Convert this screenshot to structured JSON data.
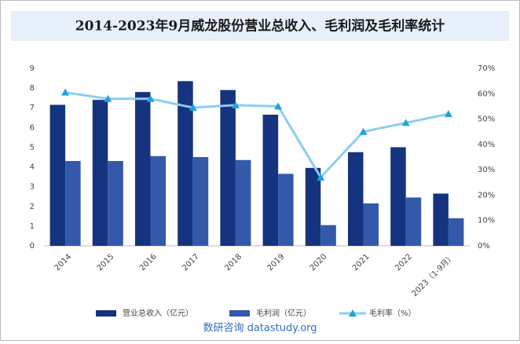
{
  "chart_data": {
    "type": "bar",
    "title": "2014-2023年9月威龙股份营业总收入、毛利润及毛利率统计",
    "footer": "数研咨询 datastudy.org",
    "categories": [
      "2014",
      "2015",
      "2016",
      "2017",
      "2018",
      "2019",
      "2020",
      "2021",
      "2022",
      "2023（1-9月）"
    ],
    "series": [
      {
        "name": "营业总收入（亿元）",
        "type": "bar",
        "color": "#15337f",
        "values": [
          7.15,
          7.4,
          7.8,
          8.35,
          7.9,
          6.65,
          3.95,
          4.75,
          5.0,
          2.65
        ]
      },
      {
        "name": "毛利润（亿元）",
        "type": "bar",
        "color": "#3459ab",
        "values": [
          4.3,
          4.3,
          4.55,
          4.5,
          4.35,
          3.65,
          1.05,
          2.15,
          2.45,
          1.4
        ]
      },
      {
        "name": "毛利率（%）",
        "type": "line",
        "axis": "y2",
        "color": "#8ccdf0",
        "marker_color": "#1fa3dc",
        "values": [
          60.5,
          58,
          58,
          54.5,
          55.5,
          55,
          27,
          45,
          48.5,
          52
        ]
      }
    ],
    "ylim": [
      0,
      9
    ],
    "yticks": [
      0,
      1,
      2,
      3,
      4,
      5,
      6,
      7,
      8,
      9
    ],
    "y2lim": [
      0,
      70
    ],
    "y2ticks": [
      {
        "value": 0,
        "label": "0%"
      },
      {
        "value": 10,
        "label": "10%"
      },
      {
        "value": 20,
        "label": "20%"
      },
      {
        "value": 30,
        "label": "30%"
      },
      {
        "value": 40,
        "label": "40%"
      },
      {
        "value": 50,
        "label": "50%"
      },
      {
        "value": 60,
        "label": "60%"
      },
      {
        "value": 70,
        "label": "70%"
      }
    ],
    "grid": false
  }
}
